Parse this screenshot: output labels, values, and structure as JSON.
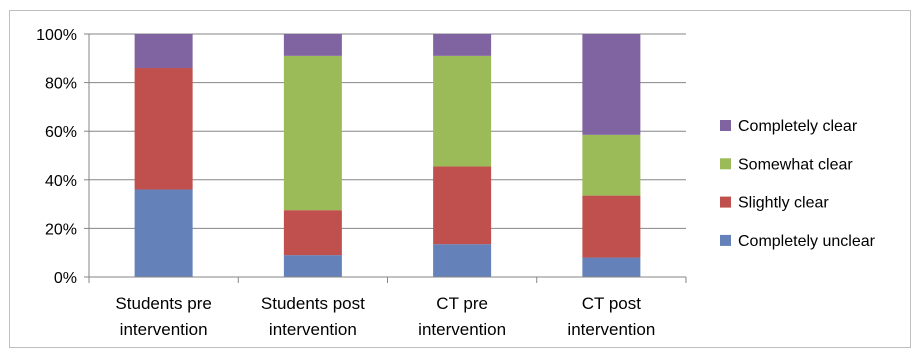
{
  "chart_data": {
    "type": "bar",
    "stacked": true,
    "categories": [
      [
        "Students pre",
        "intervention"
      ],
      [
        "Students post",
        "intervention"
      ],
      [
        "CT pre",
        "intervention"
      ],
      [
        "CT post",
        "intervention"
      ]
    ],
    "series": [
      {
        "name": "Completely unclear",
        "color": "#6481b9",
        "values": [
          36,
          9,
          13.5,
          8
        ]
      },
      {
        "name": "Slightly clear",
        "color": "#c0504d",
        "values": [
          50,
          18.5,
          32,
          25.5
        ]
      },
      {
        "name": "Somewhat clear",
        "color": "#9bbb59",
        "values": [
          0,
          63.5,
          45.5,
          25
        ]
      },
      {
        "name": "Completely clear",
        "color": "#8064a2",
        "values": [
          14,
          9,
          9,
          41.5
        ]
      }
    ],
    "ylim": [
      0,
      100
    ],
    "yticks": [
      "0%",
      "20%",
      "40%",
      "60%",
      "80%",
      "100%"
    ],
    "grid": true,
    "legend_position": "right",
    "legend_order": [
      "Completely clear",
      "Somewhat clear",
      "Slightly clear",
      "Completely unclear"
    ]
  }
}
